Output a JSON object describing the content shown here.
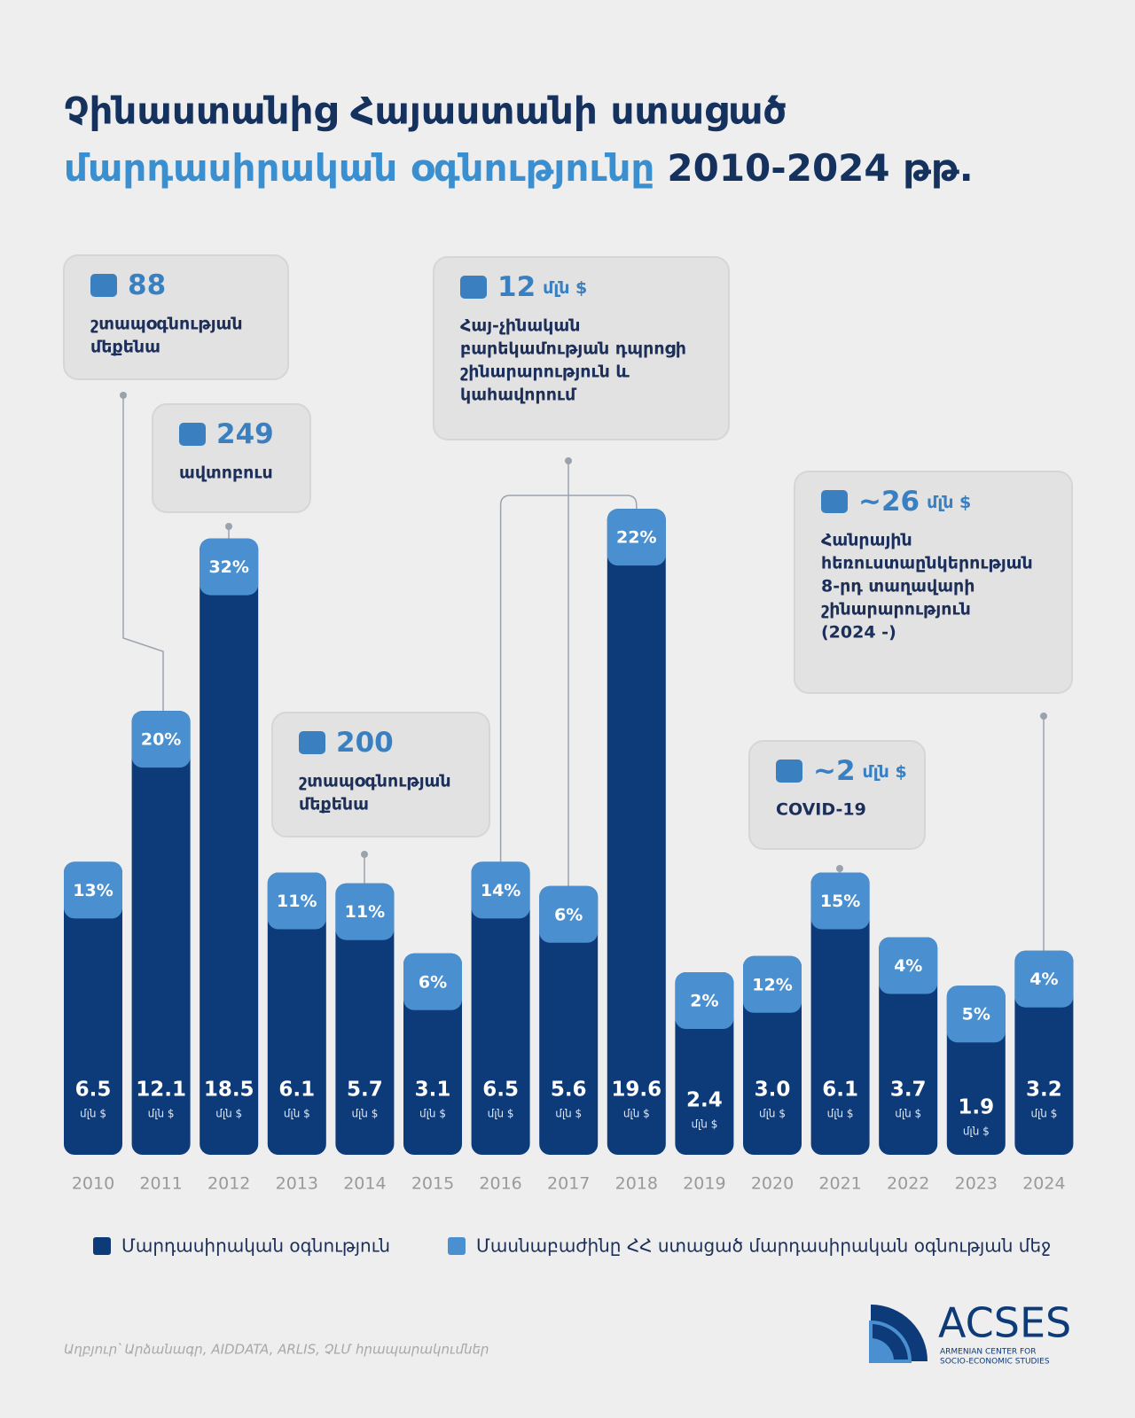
{
  "chart_data": {
    "type": "bar",
    "title_line1": "Չինաստանից Հայաստանի ստացած",
    "title_highlight": "մարդասիրական օգնությունը",
    "title_rest": "2010-2024 թթ.",
    "unit": "մլն $",
    "categories": [
      "2010",
      "2011",
      "2012",
      "2013",
      "2014",
      "2015",
      "2016",
      "2017",
      "2018",
      "2019",
      "2020",
      "2021",
      "2022",
      "2023",
      "2024"
    ],
    "series": [
      {
        "name": "Մարդասիրական օգնություն",
        "color": "#0d3a78",
        "values": [
          6.5,
          12.1,
          18.5,
          6.1,
          5.7,
          3.1,
          6.5,
          5.6,
          19.6,
          2.4,
          3.0,
          6.1,
          3.7,
          1.9,
          3.2
        ],
        "value_labels": [
          "6.5",
          "12.1",
          "18.5",
          "6.1",
          "5.7",
          "3.1",
          "6.5",
          "5.6",
          "19.6",
          "2.4",
          "3.0",
          "6.1",
          "3.7",
          "1.9",
          "3.2"
        ]
      },
      {
        "name": "Մասնաբաժինը ՀՀ ստացած մարդասիրական օգնության մեջ",
        "color": "#4a90d0",
        "values": [
          13,
          20,
          32,
          11,
          11,
          6,
          14,
          6,
          22,
          2,
          12,
          15,
          4,
          5,
          4
        ],
        "value_labels": [
          "13%",
          "20%",
          "32%",
          "11%",
          "11%",
          "6%",
          "14%",
          "6%",
          "22%",
          "2%",
          "12%",
          "15%",
          "4%",
          "5%",
          "4%"
        ]
      }
    ],
    "annotations": [
      {
        "headline": "88",
        "lines": [
          "շտապօգնության",
          "մեքենա"
        ]
      },
      {
        "headline": "249",
        "lines": [
          "ավտոբուս"
        ]
      },
      {
        "headline": "200",
        "lines": [
          "շտապօգնության",
          "մեքենա"
        ]
      },
      {
        "headline": "12",
        "lines": [
          "Հայ-չինական",
          "բարեկամության դպրոցի",
          "շինարարություն և",
          "կահավորում"
        ]
      },
      {
        "headline": "~2",
        "lines": [
          "COVID-19"
        ]
      },
      {
        "headline": "~26",
        "lines": [
          "Հանրային",
          "հեռուստաընկերության",
          "8-րդ տաղավարի",
          "շինարարություն",
          "(2024 -)"
        ]
      }
    ],
    "source": "Աղբյուր՝ Արձանագր, AIDDATA, ARLIS, ՉԼՄ հրապարակումներ",
    "logo": "ACSES",
    "logo_sub": [
      "ARMENIAN CENTER FOR",
      "SOCIO-ECONOMIC STUDIES"
    ]
  }
}
